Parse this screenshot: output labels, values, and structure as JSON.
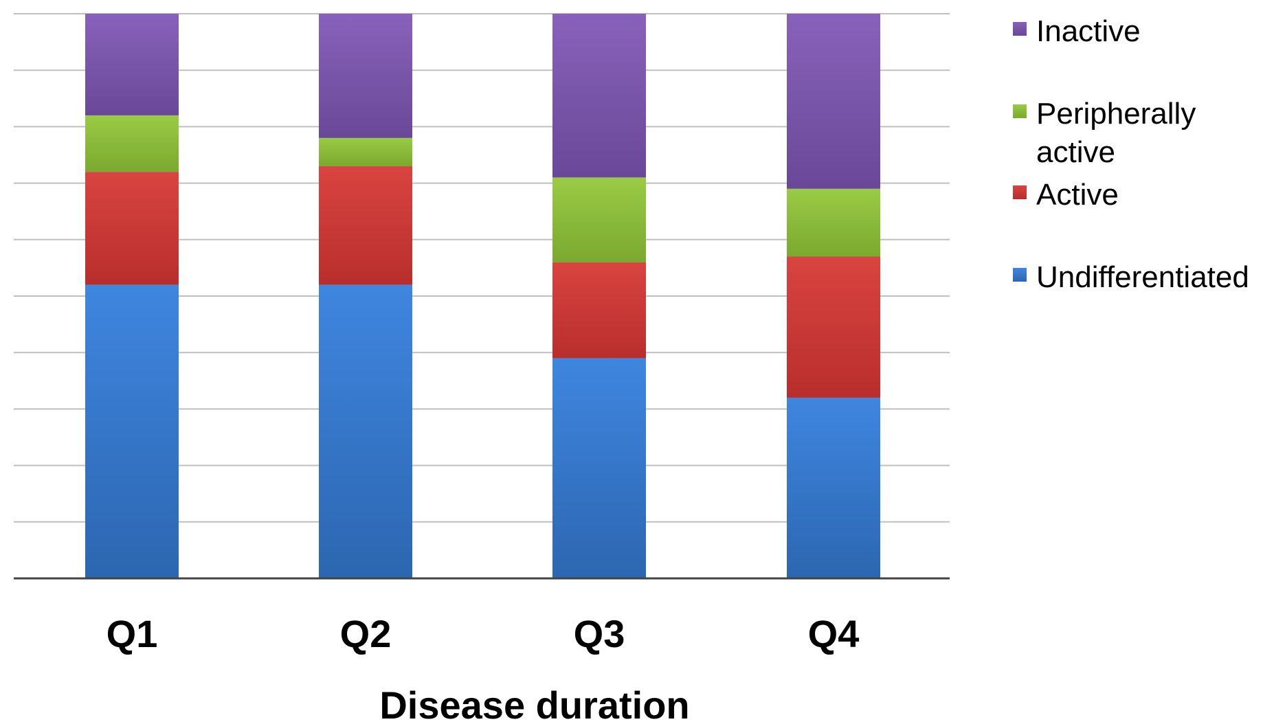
{
  "chart_data": {
    "type": "bar",
    "stacked": true,
    "normalized": true,
    "categories": [
      "Q1",
      "Q2",
      "Q3",
      "Q4"
    ],
    "series": [
      {
        "name": "Undifferentiated",
        "color": "#3B7DD8",
        "values": [
          0.52,
          0.52,
          0.39,
          0.32
        ]
      },
      {
        "name": "Active",
        "color": "#D03A36",
        "values": [
          0.2,
          0.21,
          0.17,
          0.25
        ]
      },
      {
        "name": "Peripherally active",
        "color": "#8DBD3A",
        "values": [
          0.1,
          0.05,
          0.15,
          0.12
        ]
      },
      {
        "name": "Inactive",
        "color": "#7E5AAE",
        "values": [
          0.18,
          0.22,
          0.29,
          0.31
        ]
      }
    ],
    "legend_order": [
      "Inactive",
      "Peripherally active",
      "Active",
      "Undifferentiated"
    ],
    "title": "",
    "xlabel": "Disease duration",
    "ylabel": "",
    "ylim": [
      0,
      1
    ],
    "y_gridlines": 10,
    "grid": true,
    "legend_position": "right"
  }
}
